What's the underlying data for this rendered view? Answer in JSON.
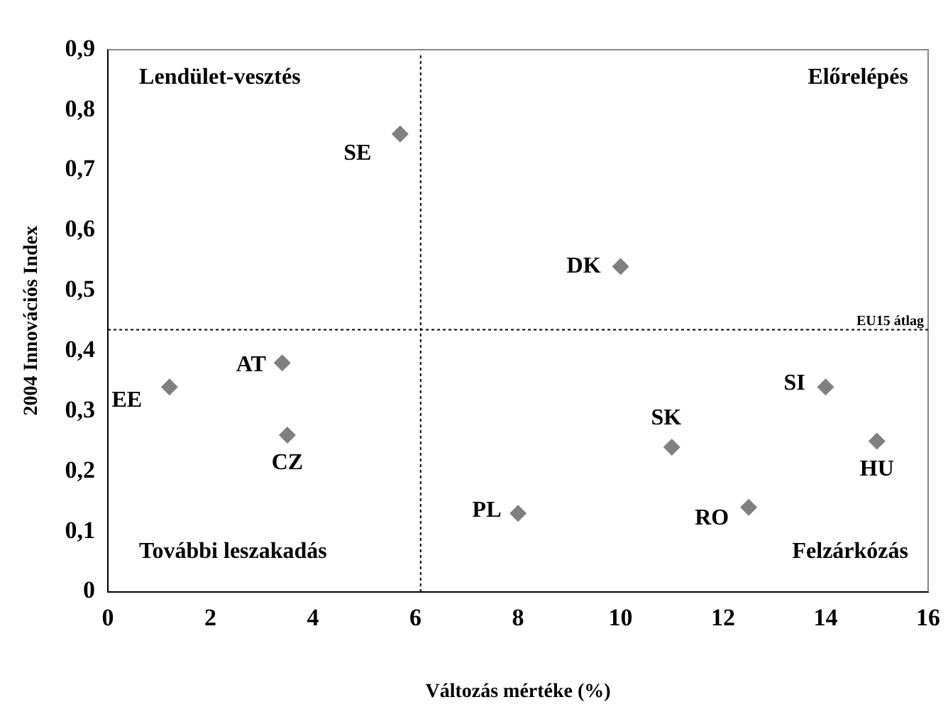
{
  "chart_data": {
    "type": "scatter",
    "xlabel": "Változás mértéke (%)",
    "ylabel": "2004 Innovációs Index",
    "x": [
      5.7,
      10,
      3.4,
      1.2,
      3.5,
      8,
      11,
      12.5,
      14,
      15
    ],
    "series": [
      {
        "color": "#808080",
        "values": [
          0.76,
          0.54,
          0.38,
          0.34,
          0.26,
          0.13,
          0.24,
          0.14,
          0.34,
          0.25
        ]
      }
    ],
    "marker": "diamond",
    "xlim": [
      0,
      16
    ],
    "xticks": [
      0,
      2,
      4,
      6,
      8,
      10,
      12,
      14,
      16
    ],
    "ylim": [
      0,
      0.9
    ],
    "yticks": [
      {
        "value": 0,
        "label": "0"
      },
      {
        "value": 0.1,
        "label": "0,1"
      },
      {
        "value": 0.2,
        "label": "0,2"
      },
      {
        "value": 0.3,
        "label": "0,3"
      },
      {
        "value": 0.4,
        "label": "0,4"
      },
      {
        "value": 0.5,
        "label": "0,5"
      },
      {
        "value": 0.6,
        "label": "0,6"
      },
      {
        "value": 0.7,
        "label": "0,7"
      },
      {
        "value": 0.8,
        "label": "0,8"
      },
      {
        "value": 0.9,
        "label": "0,9"
      }
    ],
    "grid": false,
    "ref_lines": [
      {
        "axis": "x",
        "value": 6.1,
        "line_style": "dotted",
        "color": "#000000"
      },
      {
        "axis": "y",
        "value": 0.435,
        "label": "EU15 átlag",
        "line_style": "dotted",
        "color": "#000000"
      }
    ],
    "annotations": [
      "Lendület-vesztés",
      "Előrelépés",
      "További leszakadás",
      "Felzárkózás",
      {
        "text": "SE",
        "x": 5.7,
        "y": 0.76
      },
      {
        "text": "DK",
        "x": 10,
        "y": 0.54
      },
      {
        "text": "AT",
        "x": 3.4,
        "y": 0.38
      },
      {
        "text": "EE",
        "x": 1.2,
        "y": 0.34
      },
      {
        "text": "CZ",
        "x": 3.5,
        "y": 0.26
      },
      {
        "text": "PL",
        "x": 8,
        "y": 0.13
      },
      {
        "text": "SK",
        "x": 11,
        "y": 0.24
      },
      {
        "text": "RO",
        "x": 12.5,
        "y": 0.14
      },
      {
        "text": "SI",
        "x": 14,
        "y": 0.34
      },
      {
        "text": "HU",
        "x": 15,
        "y": 0.25
      }
    ]
  }
}
